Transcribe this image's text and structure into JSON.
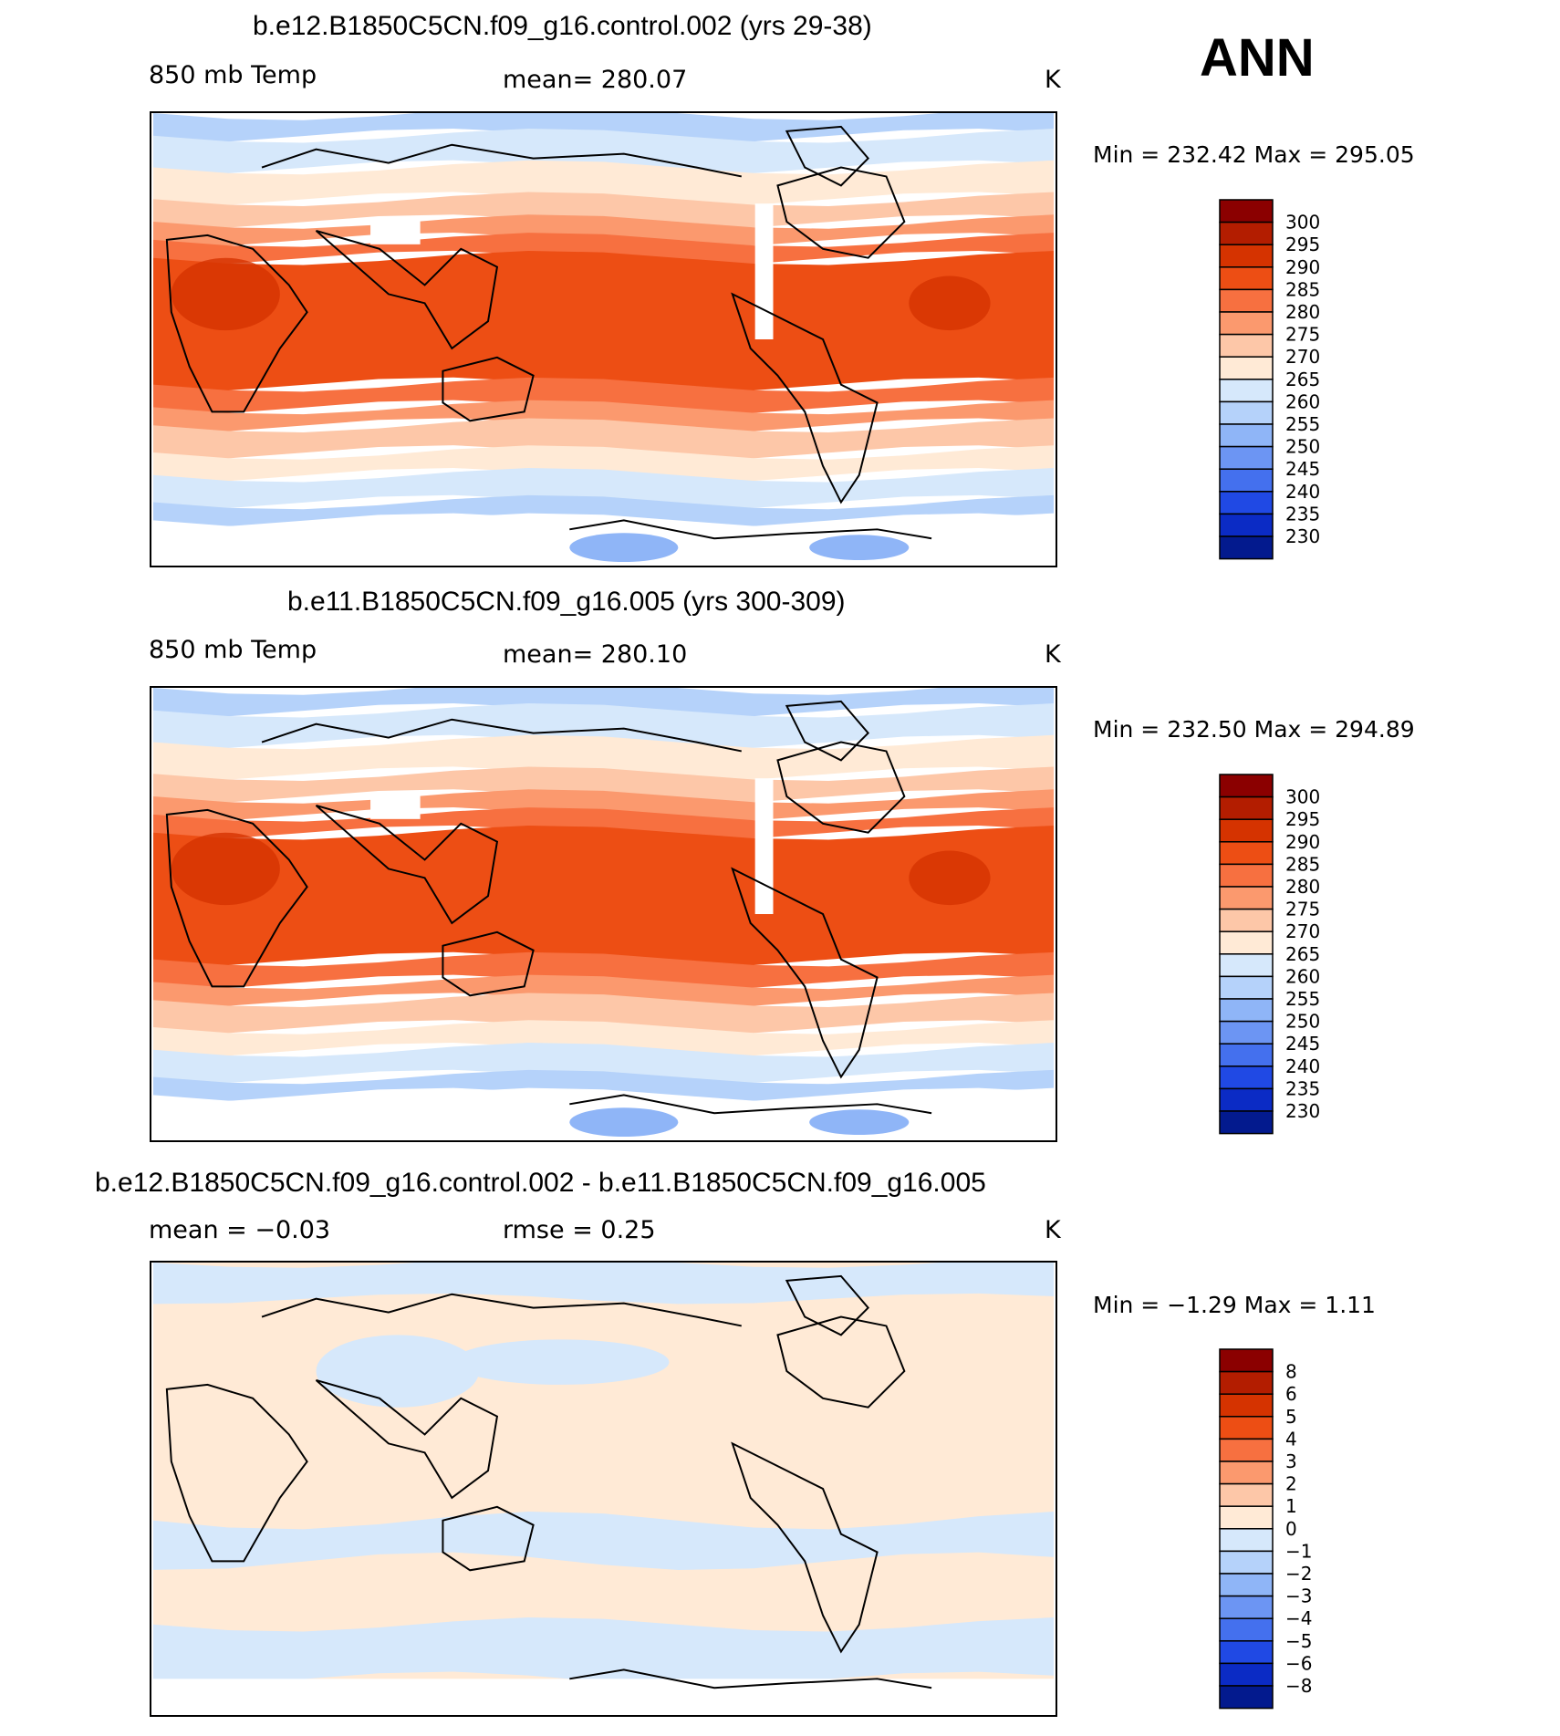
{
  "season": "ANN",
  "panels": [
    {
      "title": "b.e12.B1850C5CN.f09_g16.control.002 (yrs 29-38)",
      "variable": "850 mb Temp",
      "stat": "mean=  280.07",
      "units": "K",
      "minmax": "Min  =  232.42  Max  =  295.05",
      "kind": "abs",
      "colorbar": {
        "labels": [
          "300",
          "295",
          "290",
          "285",
          "280",
          "275",
          "270",
          "265",
          "260",
          "255",
          "250",
          "245",
          "240",
          "235",
          "230"
        ],
        "colors": [
          "#8b0000",
          "#b31d00",
          "#d53300",
          "#ed4e14",
          "#f77040",
          "#fb996e",
          "#fdc7a8",
          "#ffead6",
          "#d6e8fb",
          "#b5d2fa",
          "#8fb5f7",
          "#6c95f3",
          "#4470ee",
          "#2049e4",
          "#0b2bc5",
          "#031a8e"
        ]
      }
    },
    {
      "title": "b.e11.B1850C5CN.f09_g16.005 (yrs 300-309)",
      "variable": "850 mb Temp",
      "stat": "mean=  280.10",
      "units": "K",
      "minmax": "Min  =  232.50  Max  =  294.89",
      "kind": "abs",
      "colorbar": {
        "labels": [
          "300",
          "295",
          "290",
          "285",
          "280",
          "275",
          "270",
          "265",
          "260",
          "255",
          "250",
          "245",
          "240",
          "235",
          "230"
        ],
        "colors": [
          "#8b0000",
          "#b31d00",
          "#d53300",
          "#ed4e14",
          "#f77040",
          "#fb996e",
          "#fdc7a8",
          "#ffead6",
          "#d6e8fb",
          "#b5d2fa",
          "#8fb5f7",
          "#6c95f3",
          "#4470ee",
          "#2049e4",
          "#0b2bc5",
          "#031a8e"
        ]
      }
    },
    {
      "title": "b.e12.B1850C5CN.f09_g16.control.002 - b.e11.B1850C5CN.f09_g16.005",
      "variable": "mean =   −0.03",
      "stat": "rmse =    0.25",
      "units": "K",
      "minmax": "Min  =   −1.29  Max  =    1.11",
      "kind": "diff",
      "colorbar": {
        "labels": [
          "8",
          "6",
          "5",
          "4",
          "3",
          "2",
          "1",
          "0",
          "−1",
          "−2",
          "−3",
          "−4",
          "−5",
          "−6",
          "−8"
        ],
        "colors": [
          "#8b0000",
          "#b31d00",
          "#d53300",
          "#ed4e14",
          "#f77040",
          "#fb996e",
          "#fdc7a8",
          "#ffead6",
          "#d6e8fb",
          "#b5d2fa",
          "#8fb5f7",
          "#6c95f3",
          "#4470ee",
          "#2049e4",
          "#0b2bc5",
          "#031a8e"
        ]
      }
    }
  ]
}
